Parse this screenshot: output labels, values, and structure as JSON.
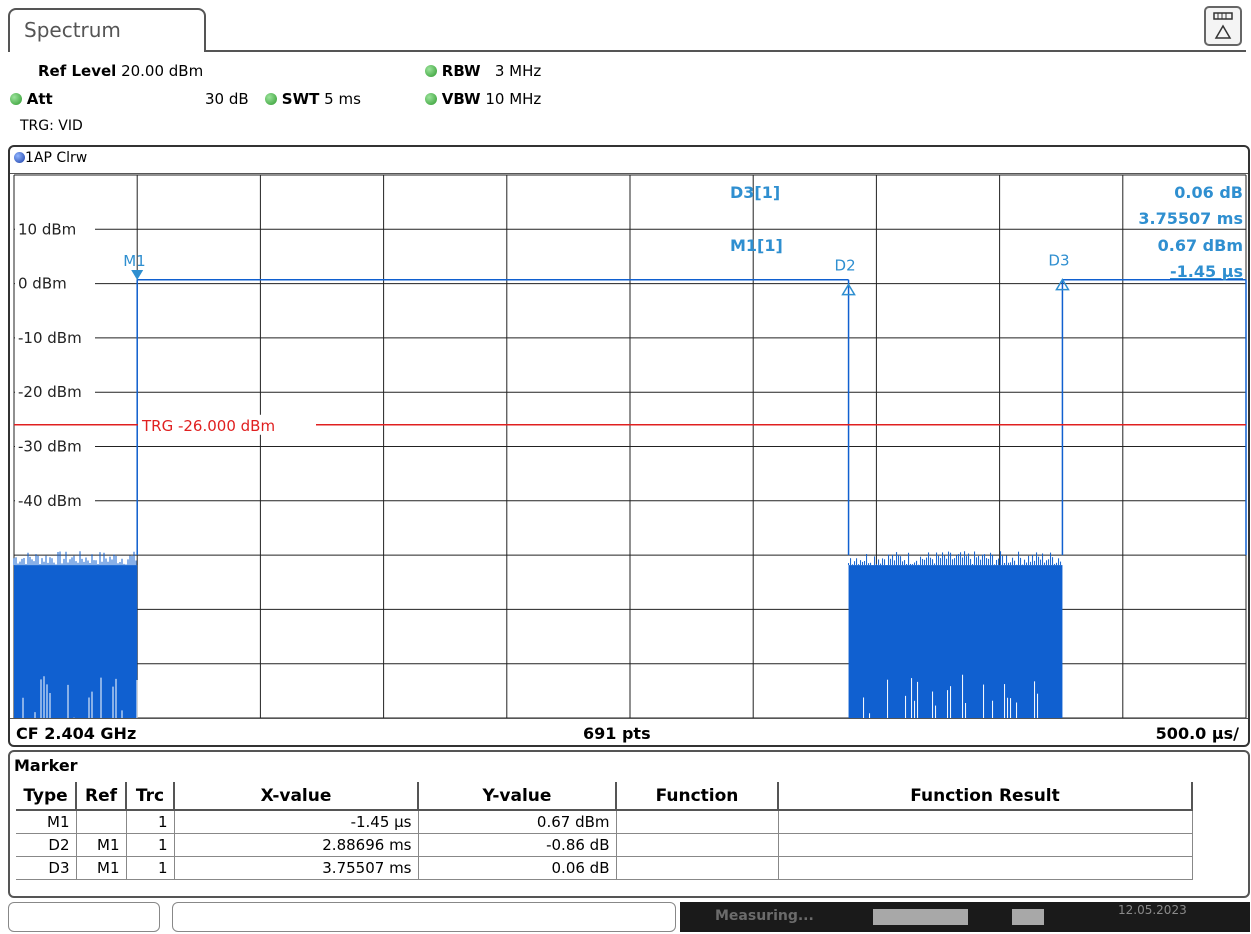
{
  "tab": {
    "label": "Spectrum"
  },
  "settings": {
    "ref_level_label": "Ref Level",
    "ref_level_value": "20.00 dBm",
    "att_label": "Att",
    "att_value": "30 dB",
    "swt_label": "SWT",
    "swt_value": "5 ms",
    "rbw_label": "RBW",
    "rbw_value": "3 MHz",
    "vbw_label": "VBW",
    "vbw_value": "10 MHz",
    "trigger": "TRG: VID"
  },
  "trace": {
    "label": "1AP Clrw",
    "color": "#1060d0"
  },
  "readout": {
    "d3_label": "D3[1]",
    "d3_value": "0.06 dB",
    "d3_time": "3.75507 ms",
    "m1_label": "M1[1]",
    "m1_value": "0.67 dBm",
    "m1_time": "-1.45 µs",
    "color": "#2f8fd0"
  },
  "chart_data": {
    "type": "line",
    "title": "",
    "y_ticks": [
      "10 dBm",
      "0 dBm",
      "-10 dBm",
      "-20 dBm",
      "-30 dBm",
      "-40 dBm"
    ],
    "ylim": [
      -80,
      20
    ],
    "xlim": [
      0,
      5
    ],
    "x_unit": "ms",
    "grid": true,
    "trigger_line": {
      "level": -26,
      "label": "TRG -26.000 dBm",
      "color": "#e02020"
    },
    "markers": [
      {
        "name": "M1",
        "x": 0.0,
        "y": 0.67,
        "symbol": "down"
      },
      {
        "name": "D2",
        "x": 2.887,
        "y": -0.19,
        "symbol": "up"
      },
      {
        "name": "D3",
        "x": 3.755,
        "y": 0.73,
        "symbol": "up"
      }
    ],
    "series": [
      {
        "segments": [
          {
            "x_start": -0.5,
            "x_end": 0.0,
            "level": "noise"
          },
          {
            "x_start": 0.0,
            "x_end": 2.887,
            "level": 0.7
          },
          {
            "x_start": 2.887,
            "x_end": 3.755,
            "level": "noise"
          },
          {
            "x_start": 3.755,
            "x_end": 4.5,
            "level": 0.7
          }
        ],
        "noise_floor": [
          -80,
          -50
        ]
      }
    ]
  },
  "bottom_bar": {
    "cf": "CF 2.404 GHz",
    "pts": "691 pts",
    "span": "500.0 µs/"
  },
  "marker_table": {
    "title": "Marker",
    "headers": [
      "Type",
      "Ref",
      "Trc",
      "X-value",
      "Y-value",
      "Function",
      "Function Result"
    ],
    "rows": [
      [
        "M1",
        "",
        "1",
        "-1.45 µs",
        "0.67 dBm",
        "",
        ""
      ],
      [
        "D2",
        "M1",
        "1",
        "2.88696 ms",
        "-0.86 dB",
        "",
        ""
      ],
      [
        "D3",
        "M1",
        "1",
        "3.75507 ms",
        "0.06 dB",
        "",
        ""
      ]
    ]
  },
  "status": {
    "measuring": "Measuring...",
    "date": "12.05.2023"
  }
}
